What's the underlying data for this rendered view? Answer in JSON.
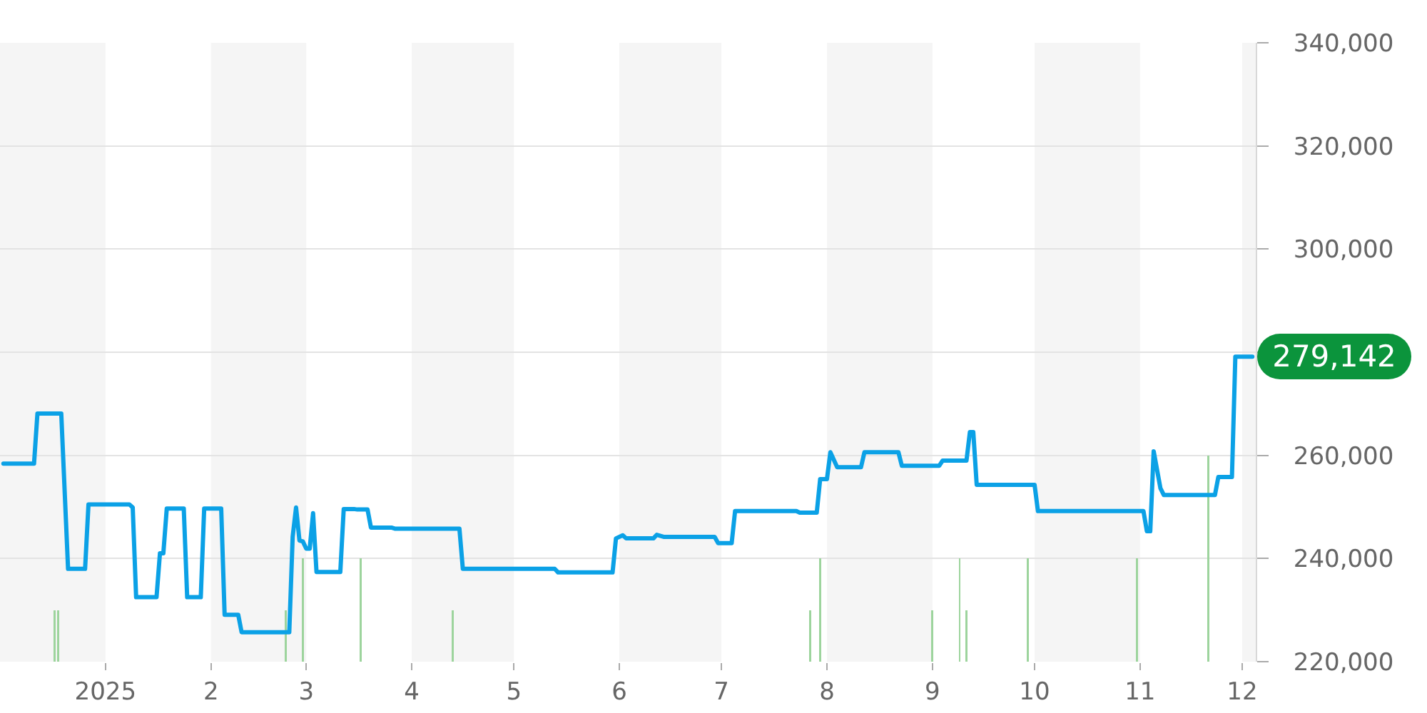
{
  "chart_data": {
    "type": "line",
    "series": [
      {
        "color": "#0ba1e6",
        "x": [
          "2024-12-02",
          "2024-12-11",
          "2024-12-12",
          "2024-12-19",
          "2024-12-21",
          "2024-12-26",
          "2024-12-27",
          "2025-01-08",
          "2025-01-09",
          "2025-01-10",
          "2025-01-16",
          "2025-01-17",
          "2025-01-18",
          "2025-01-19",
          "2025-01-24",
          "2025-01-25",
          "2025-01-29",
          "2025-01-30",
          "2025-02-04",
          "2025-02-05",
          "2025-02-09",
          "2025-02-10",
          "2025-02-24",
          "2025-02-25",
          "2025-02-26",
          "2025-02-27",
          "2025-02-28",
          "2025-03-01",
          "2025-03-02",
          "2025-03-03",
          "2025-03-04",
          "2025-03-11",
          "2025-03-12",
          "2025-03-15",
          "2025-03-16",
          "2025-03-19",
          "2025-03-20",
          "2025-03-26",
          "2025-03-27",
          "2025-04-15",
          "2025-04-16",
          "2025-05-13",
          "2025-05-14",
          "2025-05-30",
          "2025-05-31",
          "2025-06-02",
          "2025-06-03",
          "2025-06-11",
          "2025-06-12",
          "2025-06-14",
          "2025-06-29",
          "2025-06-30",
          "2025-07-04",
          "2025-07-05",
          "2025-07-23",
          "2025-07-24",
          "2025-07-29",
          "2025-07-30",
          "2025-08-01",
          "2025-08-02",
          "2025-08-04",
          "2025-08-11",
          "2025-08-12",
          "2025-08-22",
          "2025-08-23",
          "2025-09-03",
          "2025-09-04",
          "2025-09-11",
          "2025-09-12",
          "2025-09-13",
          "2025-09-14",
          "2025-10-01",
          "2025-10-02",
          "2025-11-02",
          "2025-11-03",
          "2025-11-04",
          "2025-11-05",
          "2025-11-07",
          "2025-11-08",
          "2025-11-23",
          "2025-11-24",
          "2025-11-28",
          "2025-11-29",
          "2025-12-04"
        ],
        "values": [
          258400,
          258400,
          268100,
          268100,
          238000,
          238000,
          250500,
          250500,
          249900,
          232500,
          232500,
          241000,
          241000,
          249700,
          249700,
          232500,
          232500,
          249700,
          249700,
          229100,
          229100,
          225700,
          225700,
          244200,
          249900,
          243500,
          243300,
          241900,
          241900,
          248800,
          237400,
          237400,
          249600,
          249600,
          249500,
          249500,
          246000,
          246000,
          245800,
          245800,
          238000,
          238000,
          237300,
          237300,
          243900,
          244500,
          243900,
          243900,
          244600,
          244200,
          244200,
          243000,
          243000,
          249200,
          249200,
          248900,
          248900,
          255400,
          255400,
          260600,
          257700,
          257700,
          260600,
          260600,
          258000,
          258000,
          259000,
          259000,
          264500,
          264500,
          254300,
          254300,
          249200,
          249200,
          245300,
          245300,
          260800,
          253600,
          252300,
          252300,
          255800,
          255800,
          279142,
          279142
        ]
      },
      {
        "type": "bar",
        "color": "#9dd49d",
        "x": [
          "2024-12-17",
          "2024-12-18",
          "2025-02-23",
          "2025-02-28",
          "2025-03-17",
          "2025-04-13",
          "2025-07-27",
          "2025-07-30",
          "2025-09-01",
          "2025-09-09",
          "2025-09-11",
          "2025-09-29",
          "2025-10-31",
          "2025-11-21"
        ],
        "values": [
          230000,
          230000,
          230000,
          240000,
          240000,
          230000,
          230000,
          240000,
          230000,
          240000,
          230000,
          240000,
          240000,
          260000
        ]
      }
    ],
    "xlim": [
      "2024-12-01",
      "2025-12-05"
    ],
    "xticks": [
      {
        "value": "2025-01-01",
        "label": "2025"
      },
      {
        "value": "2025-02-01",
        "label": "2"
      },
      {
        "value": "2025-03-01",
        "label": "3"
      },
      {
        "value": "2025-04-01",
        "label": "4"
      },
      {
        "value": "2025-05-01",
        "label": "5"
      },
      {
        "value": "2025-06-01",
        "label": "6"
      },
      {
        "value": "2025-07-01",
        "label": "7"
      },
      {
        "value": "2025-08-01",
        "label": "8"
      },
      {
        "value": "2025-09-01",
        "label": "9"
      },
      {
        "value": "2025-10-01",
        "label": "10"
      },
      {
        "value": "2025-11-01",
        "label": "11"
      },
      {
        "value": "2025-12-01",
        "label": "12"
      }
    ],
    "ylim": [
      220000,
      340000
    ],
    "yticks": [
      {
        "value": 220000,
        "label": "220,000"
      },
      {
        "value": 240000,
        "label": "240,000"
      },
      {
        "value": 260000,
        "label": "260,000"
      },
      {
        "value": 280000,
        "label": null
      },
      {
        "value": 300000,
        "label": "300,000"
      },
      {
        "value": 320000,
        "label": "320,000"
      },
      {
        "value": 340000,
        "label": "340,000"
      }
    ],
    "bands": [
      {
        "axis": "x",
        "from": "2024-12-01",
        "to": "2025-01-01",
        "color": "#f5f5f5"
      },
      {
        "axis": "x",
        "from": "2025-02-01",
        "to": "2025-03-01",
        "color": "#f5f5f5"
      },
      {
        "axis": "x",
        "from": "2025-04-01",
        "to": "2025-05-01",
        "color": "#f5f5f5"
      },
      {
        "axis": "x",
        "from": "2025-06-01",
        "to": "2025-07-01",
        "color": "#f5f5f5"
      },
      {
        "axis": "x",
        "from": "2025-08-01",
        "to": "2025-09-01",
        "color": "#f5f5f5"
      },
      {
        "axis": "x",
        "from": "2025-10-01",
        "to": "2025-11-01",
        "color": "#f5f5f5"
      },
      {
        "axis": "x",
        "from": "2025-12-01",
        "to": "2025-12-05",
        "color": "#f5f5f5"
      }
    ],
    "annotations": [
      {
        "text": "279,142",
        "x": "2025-12-04",
        "y": 279142
      }
    ],
    "grid": "y",
    "legend": false
  }
}
